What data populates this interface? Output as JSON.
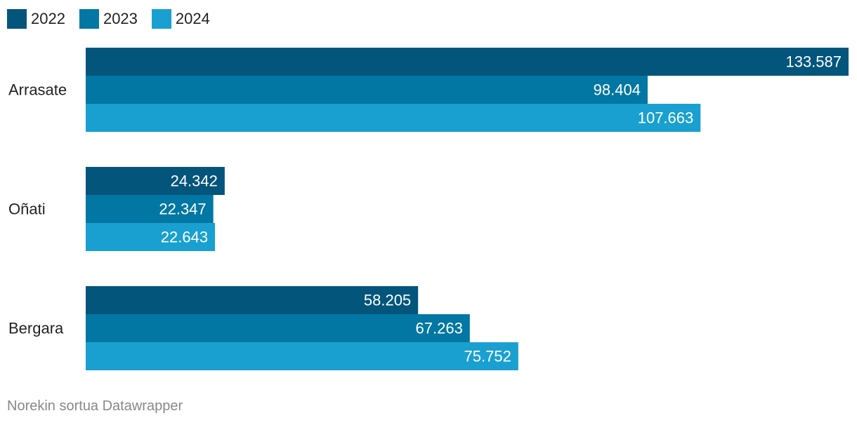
{
  "chart_data": {
    "type": "bar",
    "orientation": "horizontal",
    "categories": [
      "Arrasate",
      "Oñati",
      "Bergara"
    ],
    "series": [
      {
        "name": "2022",
        "color": "#03557c",
        "values": [
          133.587,
          24.342,
          58.205
        ],
        "labels": [
          "133.587",
          "24.342",
          "58.205"
        ]
      },
      {
        "name": "2023",
        "color": "#0277a3",
        "values": [
          98.404,
          22.347,
          67.263
        ],
        "labels": [
          "98.404",
          "22.347",
          "67.263"
        ]
      },
      {
        "name": "2024",
        "color": "#1aa0d0",
        "values": [
          107.663,
          22.643,
          75.752
        ],
        "labels": [
          "107.663",
          "22.643",
          "75.752"
        ]
      }
    ],
    "xlim": [
      0,
      133.587
    ],
    "grid": false,
    "legend_position": "top-left"
  },
  "legend": {
    "items": [
      {
        "label": "2022",
        "color": "#03557c"
      },
      {
        "label": "2023",
        "color": "#0277a3"
      },
      {
        "label": "2024",
        "color": "#1aa0d0"
      }
    ]
  },
  "footer": {
    "credit": "Norekin sortua Datawrapper"
  }
}
